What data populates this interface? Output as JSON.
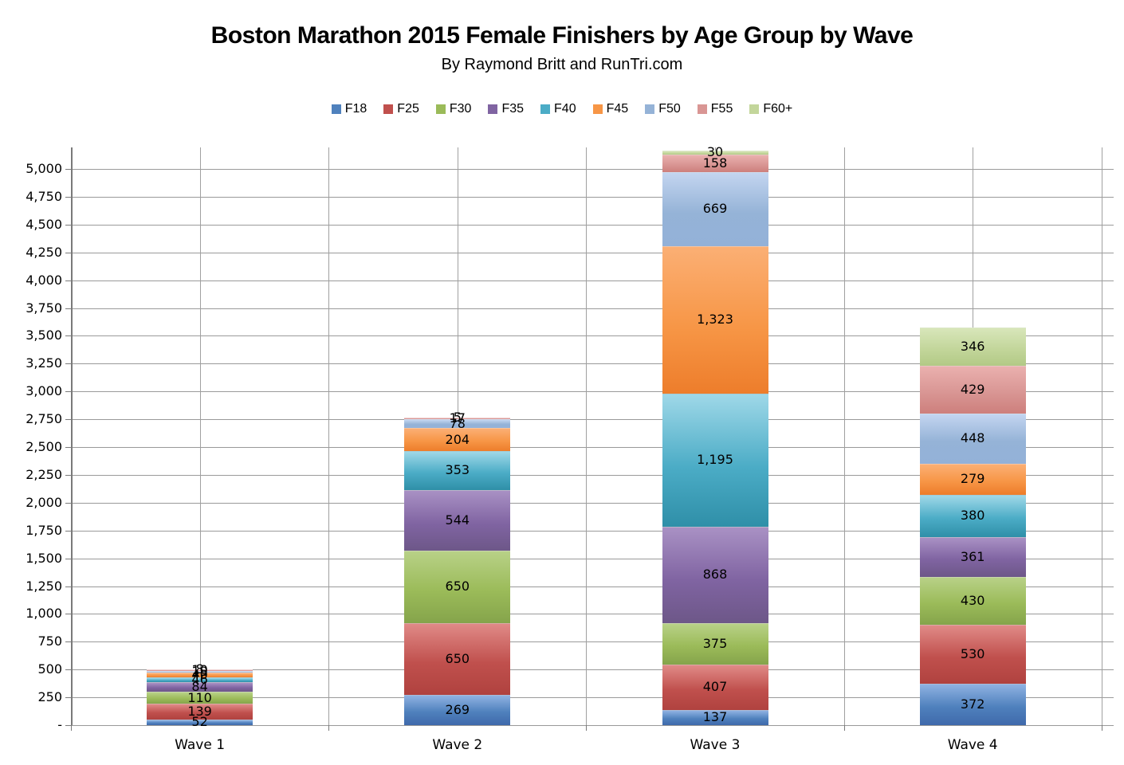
{
  "title": "Boston Marathon 2015 Female Finishers by Age Group by Wave",
  "subtitle": "By Raymond Britt and RunTri.com",
  "chart_data": {
    "type": "bar",
    "stacked": true,
    "title": "Boston Marathon 2015 Female Finishers by Age Group by Wave",
    "subtitle": "By Raymond Britt and RunTri.com",
    "categories": [
      "Wave 1",
      "Wave 2",
      "Wave 3",
      "Wave 4"
    ],
    "series": [
      {
        "name": "F18",
        "color": "#4F81BD",
        "color_top": "#8fb2e2",
        "color_bottom": "#3f69ab",
        "values": [
          52,
          269,
          137,
          372
        ]
      },
      {
        "name": "F25",
        "color": "#C0504D",
        "color_top": "#e08a87",
        "color_bottom": "#b0423f",
        "values": [
          139,
          650,
          407,
          530
        ]
      },
      {
        "name": "F30",
        "color": "#9BBB59",
        "color_top": "#b8d187",
        "color_bottom": "#85a44b",
        "values": [
          110,
          650,
          375,
          430
        ]
      },
      {
        "name": "F35",
        "color": "#8064A2",
        "color_top": "#a991c4",
        "color_bottom": "#6d5788",
        "values": [
          84,
          544,
          868,
          361
        ]
      },
      {
        "name": "F40",
        "color": "#4BACC6",
        "color_top": "#9fd8e8",
        "color_bottom": "#2f8fa8",
        "values": [
          46,
          353,
          1195,
          380
        ]
      },
      {
        "name": "F45",
        "color": "#F79646",
        "color_top": "#fbaf74",
        "color_bottom": "#ed7d2b",
        "values": [
          40,
          204,
          1323,
          279
        ]
      },
      {
        "name": "F50",
        "color": "#95B3D7",
        "color_top": "#c3d5f0",
        "color_bottom": "#93b1d8",
        "values": [
          19,
          78,
          669,
          448
        ]
      },
      {
        "name": "F55",
        "color": "#D99694",
        "color_top": "#eab0ae",
        "color_bottom": "#cd7f7c",
        "values": [
          10,
          17,
          158,
          429
        ]
      },
      {
        "name": "F60+",
        "color": "#C3D69B",
        "color_top": "#d8e6ba",
        "color_bottom": "#b2c986",
        "values": [
          8,
          5,
          30,
          346
        ]
      }
    ],
    "ylim": [
      0,
      5000
    ],
    "ytick_interval": 250,
    "ytick_labels": [
      "-",
      "250",
      "500",
      "750",
      "1,000",
      "1,250",
      "1,500",
      "1,750",
      "2,000",
      "2,250",
      "2,500",
      "2,750",
      "3,000",
      "3,250",
      "3,500",
      "3,750",
      "4,000",
      "4,250",
      "4,500",
      "4,750",
      "5,000"
    ],
    "grid": true,
    "legend_position": "top",
    "data_labels": true
  },
  "colors": {
    "gridline": "#9a9a9a",
    "axis": "#7a7a7a",
    "background": "#ffffff",
    "label_text": "#000000"
  }
}
